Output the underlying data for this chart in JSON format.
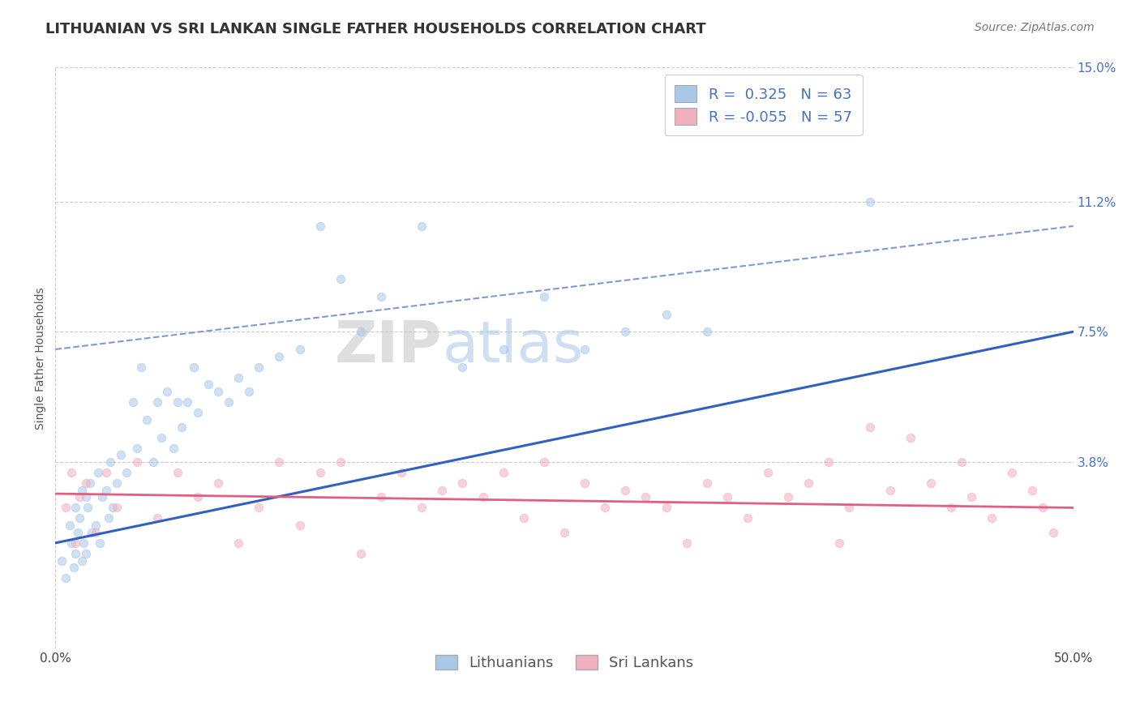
{
  "title": "LITHUANIAN VS SRI LANKAN SINGLE FATHER HOUSEHOLDS CORRELATION CHART",
  "source": "Source: ZipAtlas.com",
  "ylabel": "Single Father Households",
  "xlim": [
    0.0,
    50.0
  ],
  "ylim": [
    -1.5,
    15.0
  ],
  "ytick_vals": [
    3.8,
    7.5,
    11.2,
    15.0
  ],
  "ytick_labels": [
    "3.8%",
    "7.5%",
    "11.2%",
    "15.0%"
  ],
  "xtick_vals": [
    0,
    50
  ],
  "xtick_labels": [
    "0.0%",
    "50.0%"
  ],
  "grid_color": "#cccccc",
  "background_color": "#ffffff",
  "blue_scatter_color": "#a8c8e8",
  "pink_scatter_color": "#f0b0c0",
  "blue_line_color": "#3060c0",
  "pink_line_color": "#e06080",
  "dashed_line_color": "#7090d0",
  "legend_text_color": "#4472C4",
  "tick_color": "#4472C4",
  "R1": 0.325,
  "N1": 63,
  "R2": -0.055,
  "N2": 57,
  "label1": "Lithuanians",
  "label2": "Sri Lankans",
  "point_size": 55,
  "point_alpha": 0.55,
  "title_fontsize": 13,
  "axis_label_fontsize": 10,
  "tick_fontsize": 11,
  "legend_fontsize": 13,
  "source_fontsize": 10,
  "watermark_zip_color": "#c8c8c8",
  "watermark_atlas_color": "#b0c8e8",
  "blue_x": [
    0.3,
    0.5,
    0.7,
    0.8,
    0.9,
    1.0,
    1.0,
    1.1,
    1.2,
    1.3,
    1.3,
    1.4,
    1.5,
    1.5,
    1.6,
    1.7,
    1.8,
    2.0,
    2.1,
    2.2,
    2.3,
    2.5,
    2.6,
    2.7,
    2.8,
    3.0,
    3.2,
    3.5,
    3.8,
    4.0,
    4.2,
    4.5,
    4.8,
    5.0,
    5.2,
    5.5,
    5.8,
    6.0,
    6.2,
    6.5,
    6.8,
    7.0,
    7.5,
    8.0,
    8.5,
    9.0,
    9.5,
    10.0,
    11.0,
    12.0,
    13.0,
    14.0,
    15.0,
    16.0,
    18.0,
    20.0,
    22.0,
    24.0,
    26.0,
    28.0,
    30.0,
    32.0,
    40.0
  ],
  "blue_y": [
    1.0,
    0.5,
    2.0,
    1.5,
    0.8,
    1.2,
    2.5,
    1.8,
    2.2,
    1.0,
    3.0,
    1.5,
    2.8,
    1.2,
    2.5,
    3.2,
    1.8,
    2.0,
    3.5,
    1.5,
    2.8,
    3.0,
    2.2,
    3.8,
    2.5,
    3.2,
    4.0,
    3.5,
    5.5,
    4.2,
    6.5,
    5.0,
    3.8,
    5.5,
    4.5,
    5.8,
    4.2,
    5.5,
    4.8,
    5.5,
    6.5,
    5.2,
    6.0,
    5.8,
    5.5,
    6.2,
    5.8,
    6.5,
    6.8,
    7.0,
    10.5,
    9.0,
    7.5,
    8.5,
    10.5,
    6.5,
    7.0,
    8.5,
    7.0,
    7.5,
    8.0,
    7.5,
    11.2
  ],
  "pink_x": [
    0.5,
    0.8,
    1.0,
    1.2,
    1.5,
    2.0,
    2.5,
    3.0,
    4.0,
    5.0,
    6.0,
    7.0,
    8.0,
    9.0,
    10.0,
    11.0,
    12.0,
    13.0,
    14.0,
    15.0,
    16.0,
    17.0,
    18.0,
    19.0,
    20.0,
    21.0,
    22.0,
    23.0,
    24.0,
    25.0,
    26.0,
    27.0,
    28.0,
    29.0,
    30.0,
    31.0,
    32.0,
    33.0,
    34.0,
    35.0,
    36.0,
    37.0,
    38.0,
    39.0,
    40.0,
    41.0,
    42.0,
    43.0,
    44.0,
    45.0,
    46.0,
    47.0,
    48.0,
    49.0,
    48.5,
    44.5,
    38.5
  ],
  "pink_y": [
    2.5,
    3.5,
    1.5,
    2.8,
    3.2,
    1.8,
    3.5,
    2.5,
    3.8,
    2.2,
    3.5,
    2.8,
    3.2,
    1.5,
    2.5,
    3.8,
    2.0,
    3.5,
    3.8,
    1.2,
    2.8,
    3.5,
    2.5,
    3.0,
    3.2,
    2.8,
    3.5,
    2.2,
    3.8,
    1.8,
    3.2,
    2.5,
    3.0,
    2.8,
    2.5,
    1.5,
    3.2,
    2.8,
    2.2,
    3.5,
    2.8,
    3.2,
    3.8,
    2.5,
    4.8,
    3.0,
    4.5,
    3.2,
    2.5,
    2.8,
    2.2,
    3.5,
    3.0,
    1.8,
    2.5,
    3.8,
    1.5
  ],
  "blue_trend_x0": 0,
  "blue_trend_y0": 1.5,
  "blue_trend_x1": 50,
  "blue_trend_y1": 7.5,
  "pink_trend_x0": 0,
  "pink_trend_y0": 2.9,
  "pink_trend_x1": 50,
  "pink_trend_y1": 2.5,
  "dashed_x0": 0,
  "dashed_y0": 7.0,
  "dashed_x1": 50,
  "dashed_y1": 10.5
}
